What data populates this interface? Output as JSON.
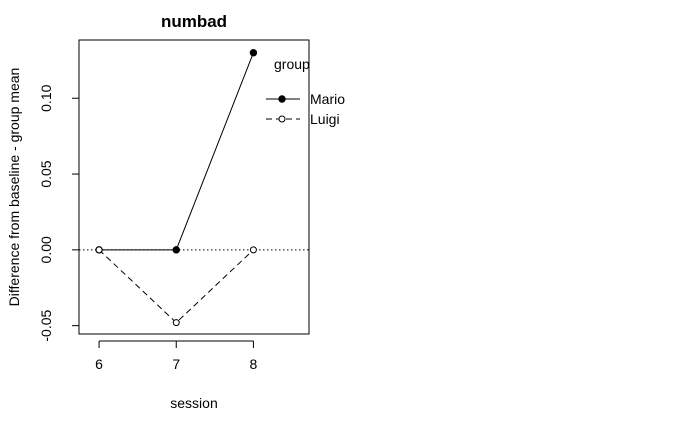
{
  "chart_data": {
    "type": "line",
    "title": "numbad",
    "xlabel": "session",
    "ylabel": "Difference from baseline - group mean",
    "x": [
      6,
      7,
      8
    ],
    "x_tick_labels": [
      "6",
      "7",
      "8"
    ],
    "y_ticks": [
      -0.05,
      0.0,
      0.05,
      0.1
    ],
    "y_tick_labels": [
      "-0.05",
      "0.00",
      "0.05",
      "0.10"
    ],
    "xlim": [
      5.74,
      8.72
    ],
    "ylim": [
      -0.0555,
      0.1384
    ],
    "reference_line": 0,
    "legend": {
      "title": "group",
      "placement": "top-right"
    },
    "series": [
      {
        "name": "Mario",
        "values": [
          0.0,
          0.0,
          0.13
        ],
        "marker": "filled-circle",
        "line": "solid"
      },
      {
        "name": "Luigi",
        "values": [
          0.0,
          -0.048,
          0.0
        ],
        "marker": "open-circle",
        "line": "dashed"
      }
    ]
  }
}
